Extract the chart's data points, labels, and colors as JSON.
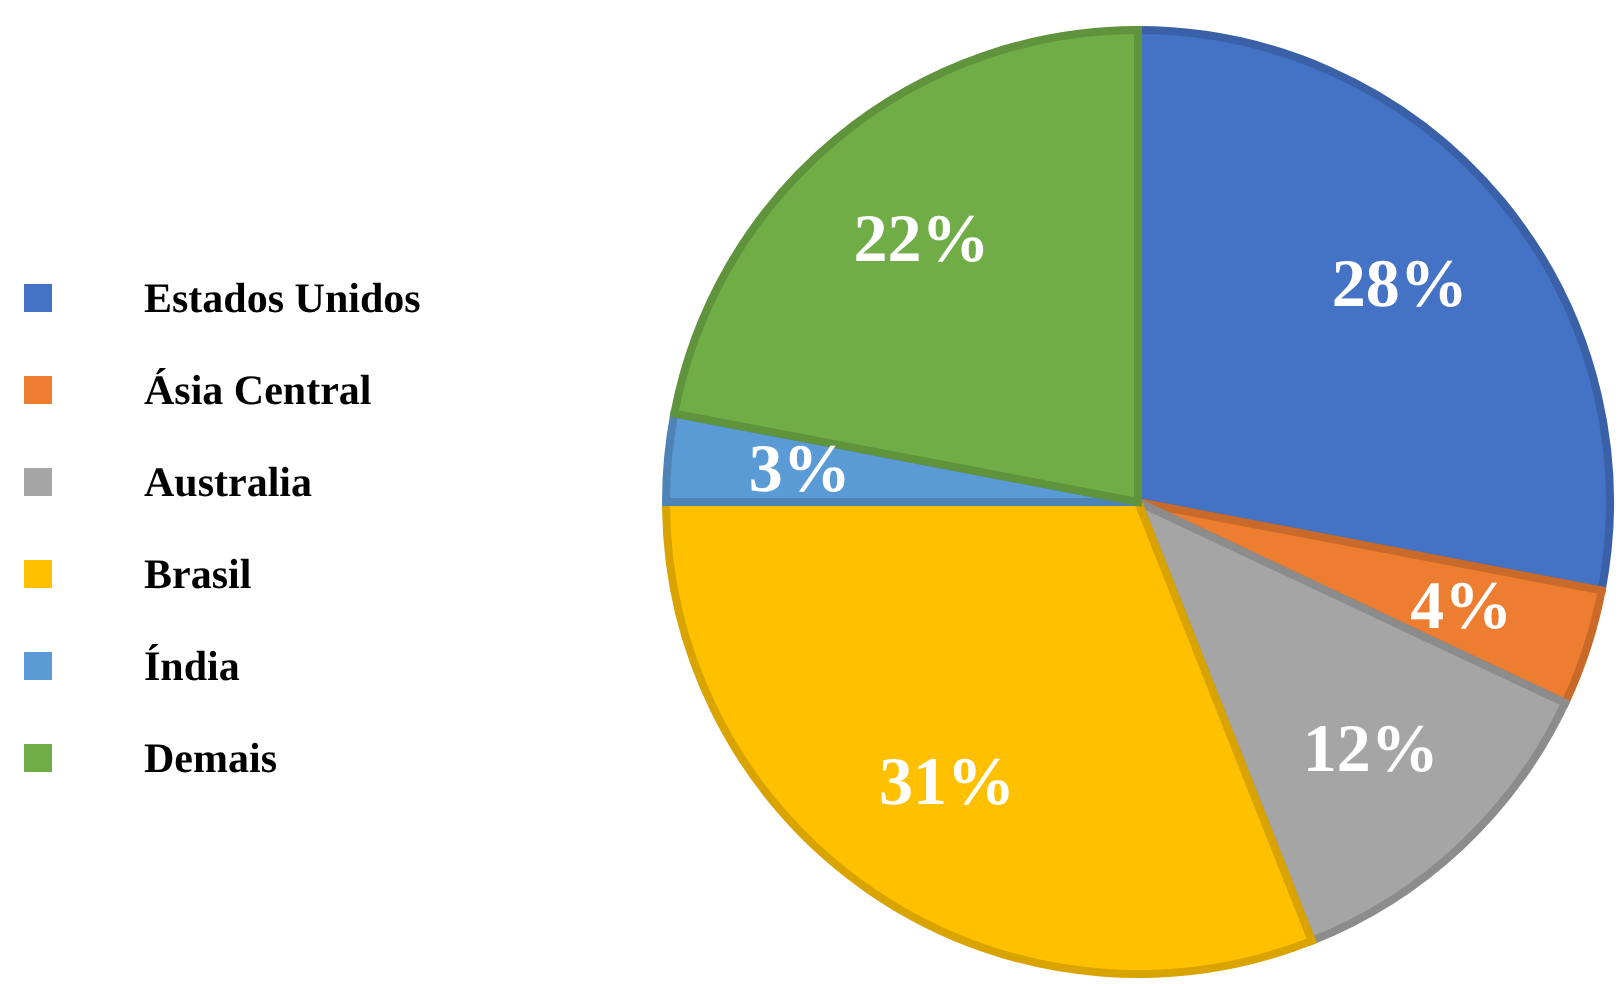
{
  "chart_data": {
    "type": "pie",
    "categories": [
      "Estados Unidos",
      "Ásia Central",
      "Australia",
      "Brasil",
      "Índia",
      "Demais"
    ],
    "values": [
      28,
      4,
      12,
      31,
      3,
      22
    ],
    "value_labels": [
      "28%",
      "4%",
      "12%",
      "31%",
      "3%",
      "22%"
    ],
    "colors": [
      "#4472c4",
      "#ed7d31",
      "#a5a5a5",
      "#ffc000",
      "#5b9bd5",
      "#70ad47"
    ],
    "legend": "left"
  }
}
